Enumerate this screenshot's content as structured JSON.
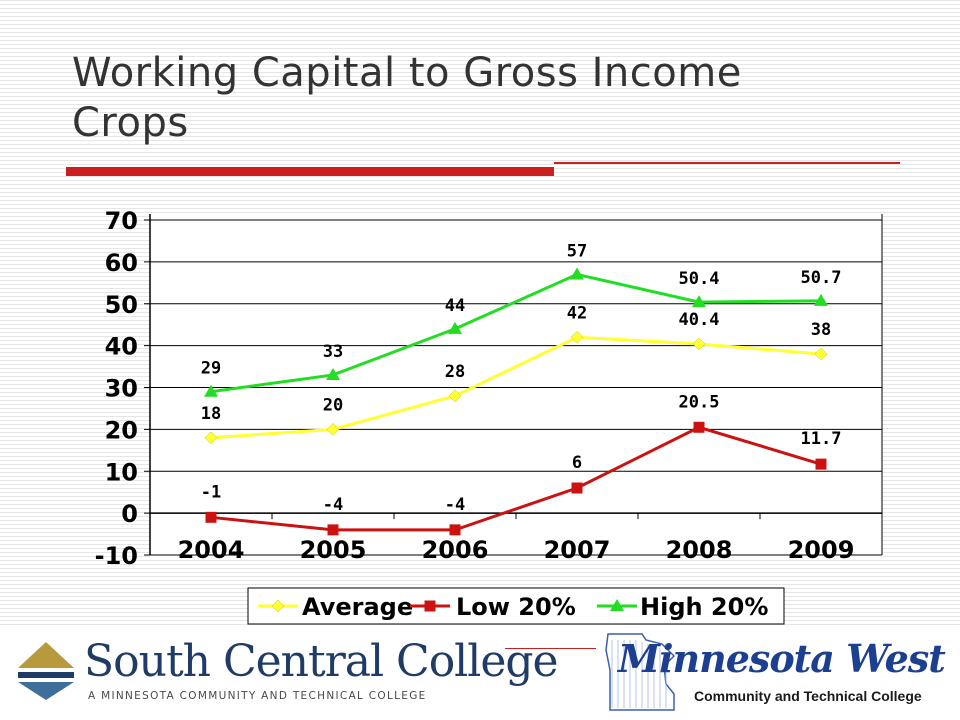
{
  "slide": {
    "title_line1": "Working Capital to Gross Income",
    "title_line2": "Crops"
  },
  "chart_data": {
    "type": "line",
    "title": "",
    "xlabel": "",
    "ylabel": "",
    "categories": [
      "2004",
      "2005",
      "2006",
      "2007",
      "2008",
      "2009"
    ],
    "ylim": [
      -10,
      70
    ],
    "yticks": [
      -10,
      0,
      10,
      20,
      30,
      40,
      50,
      60,
      70
    ],
    "grid": true,
    "legend_placement": "bottom",
    "series": [
      {
        "name": "Average",
        "values": [
          18,
          20,
          28,
          42,
          40.4,
          38
        ],
        "labels": [
          "18",
          "20",
          "28",
          "42",
          "40.4",
          "38"
        ],
        "color": "#ffff33",
        "marker": "diamond"
      },
      {
        "name": "Low 20%",
        "values": [
          -1,
          -4,
          -4,
          6,
          20.5,
          11.7
        ],
        "labels": [
          "-1",
          "-4",
          "-4",
          "6",
          "20.5",
          "11.7"
        ],
        "color": "#cc1111",
        "marker": "square"
      },
      {
        "name": "High 20%",
        "values": [
          29,
          33,
          44,
          57,
          50.4,
          50.7
        ],
        "labels": [
          "29",
          "33",
          "44",
          "57",
          "50.4",
          "50.7"
        ],
        "color": "#22dd22",
        "marker": "triangle"
      }
    ]
  },
  "logos": {
    "south_central": {
      "name": "South Central College",
      "tagline": "A MINNESOTA COMMUNITY AND TECHNICAL COLLEGE"
    },
    "minnesota_west": {
      "name": "Minnesota West",
      "subtitle": "Community and Technical College"
    }
  }
}
